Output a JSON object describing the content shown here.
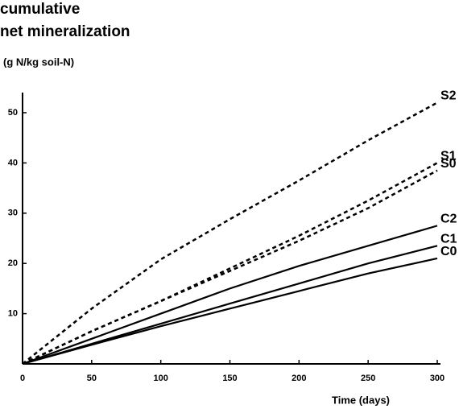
{
  "chart_data": {
    "type": "line",
    "title_lines": [
      "cumulative",
      "net mineralization"
    ],
    "y_label": "(g N/kg soil-N)",
    "x_label": "Time (days)",
    "x": [
      0,
      50,
      100,
      150,
      200,
      250,
      300
    ],
    "xlim": [
      0,
      300
    ],
    "xticks": [
      0,
      50,
      100,
      150,
      200,
      250,
      300
    ],
    "ylim": [
      0,
      54
    ],
    "yticks": [
      10,
      20,
      30,
      40,
      50
    ],
    "series": [
      {
        "name": "S2",
        "color": "#000000",
        "dash": true,
        "values": [
          0,
          11,
          20.8,
          28.8,
          36.5,
          44.5,
          52
        ]
      },
      {
        "name": "S1",
        "color": "#000000",
        "dash": true,
        "values": [
          0,
          6.5,
          12.5,
          19,
          25.5,
          32.5,
          40
        ]
      },
      {
        "name": "S0",
        "color": "#000000",
        "dash": true,
        "values": [
          0,
          6.5,
          12.5,
          18.5,
          24.5,
          31,
          38.5
        ]
      },
      {
        "name": "C2",
        "color": "#000000",
        "dash": false,
        "values": [
          0,
          5,
          10,
          15,
          19.5,
          23.5,
          27.5
        ]
      },
      {
        "name": "C1",
        "color": "#000000",
        "dash": false,
        "values": [
          0,
          4,
          8,
          12,
          16,
          20,
          23.5
        ]
      },
      {
        "name": "C0",
        "color": "#000000",
        "dash": false,
        "values": [
          0,
          3.8,
          7.5,
          11,
          14.5,
          18,
          21
        ]
      }
    ]
  }
}
